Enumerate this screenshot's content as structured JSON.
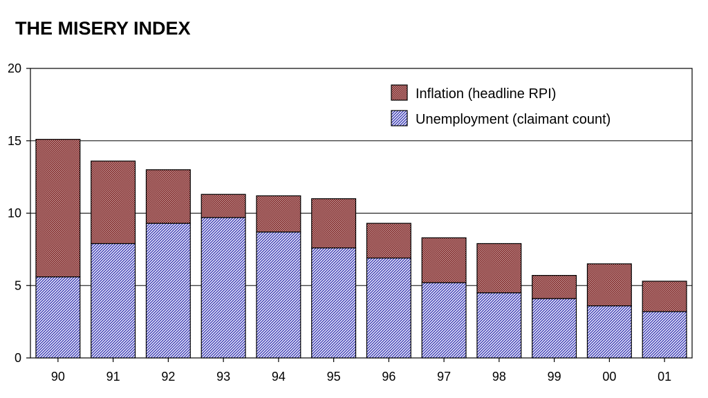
{
  "title": "THE MISERY INDEX",
  "chart_data": {
    "type": "bar",
    "stacked": true,
    "categories": [
      "90",
      "91",
      "92",
      "93",
      "94",
      "95",
      "96",
      "97",
      "98",
      "99",
      "00",
      "01"
    ],
    "series": [
      {
        "name": "Unemployment (claimant count)",
        "values": [
          5.6,
          7.9,
          9.3,
          9.7,
          8.7,
          7.6,
          6.9,
          5.2,
          4.5,
          4.1,
          3.6,
          3.2
        ],
        "color": "#1a1aa0",
        "pattern": "diagonal-hatch"
      },
      {
        "name": "Inflation (headline RPI)",
        "values": [
          9.5,
          5.7,
          3.7,
          1.6,
          2.5,
          3.4,
          2.4,
          3.1,
          3.4,
          1.6,
          2.9,
          2.1
        ],
        "color": "#8b1a1a",
        "pattern": "crosshatch"
      }
    ],
    "ylim": [
      0,
      20
    ],
    "yticks": [
      "0",
      "5",
      "10",
      "15",
      "20"
    ],
    "grid": true,
    "legend_position": "top-right",
    "xlabel": "",
    "ylabel": ""
  }
}
